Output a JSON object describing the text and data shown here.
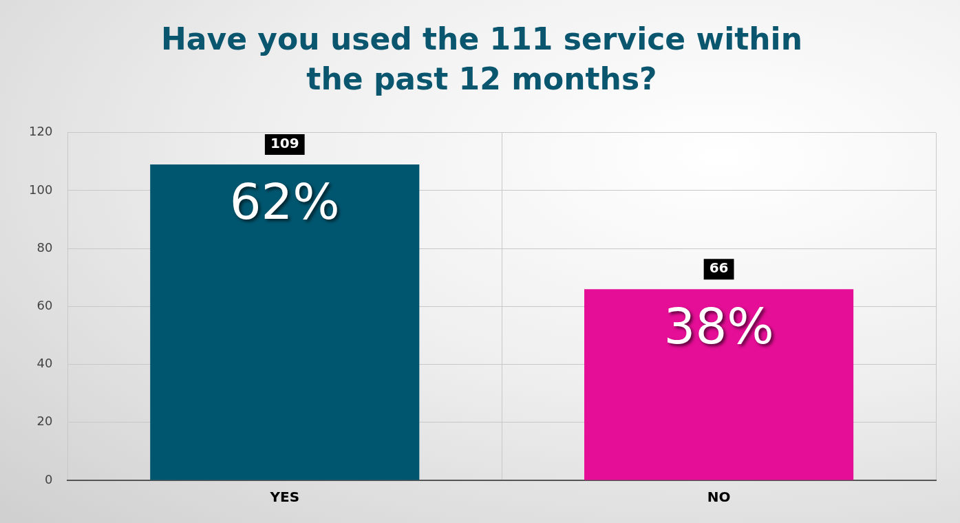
{
  "chart_data": {
    "type": "bar",
    "title": "Have you used the 111 service within the past 12 months?",
    "categories": [
      "YES",
      "NO"
    ],
    "values": [
      109,
      66
    ],
    "colors": [
      "#00566f",
      "#e50e96"
    ],
    "ylim": [
      0,
      120
    ],
    "yticks": [
      0,
      20,
      40,
      60,
      80,
      100,
      120
    ],
    "grid": true,
    "data_labels": true,
    "annotations": [
      "62%",
      "38%"
    ]
  }
}
